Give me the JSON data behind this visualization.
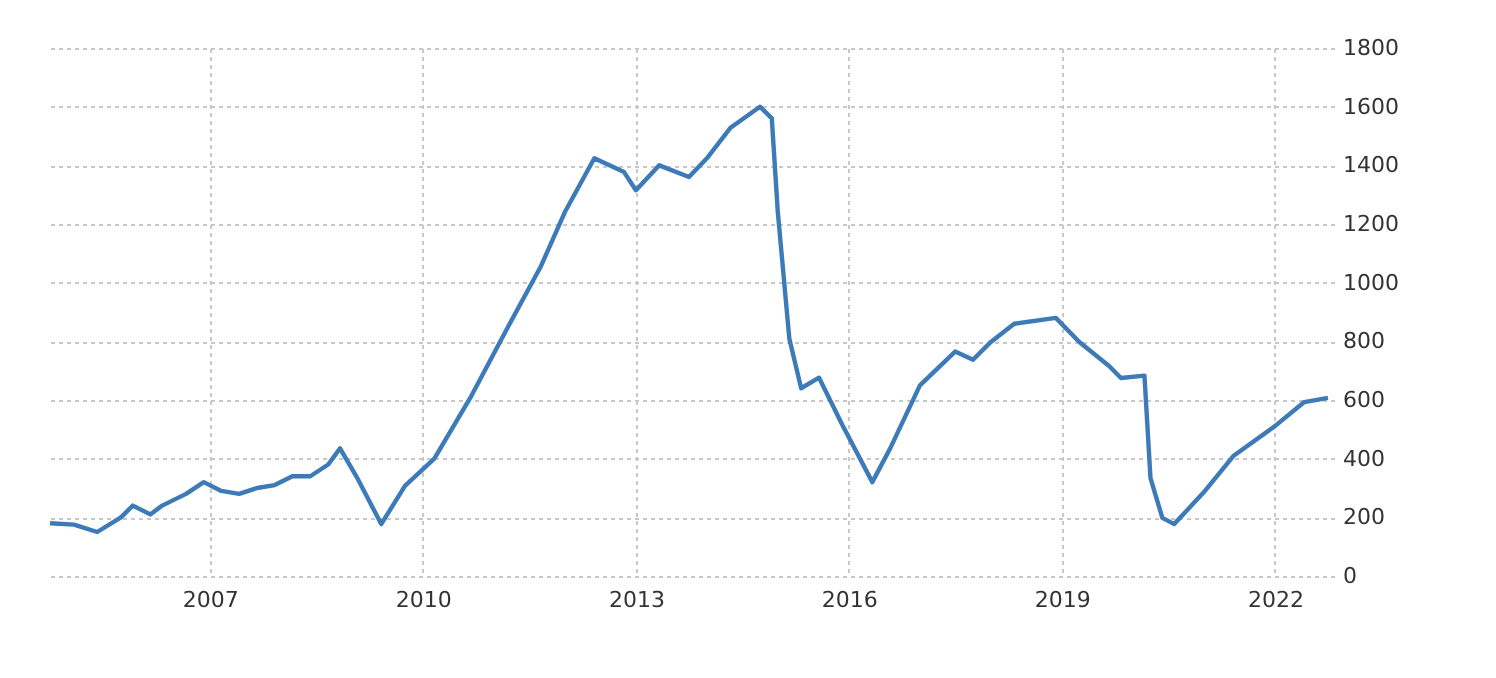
{
  "chart_data": {
    "type": "line",
    "color": "#3d7ab8",
    "x": [
      "2004-10",
      "2005-02",
      "2005-06",
      "2005-10",
      "2005-12",
      "2006-03",
      "2006-05",
      "2006-09",
      "2006-12",
      "2007-03",
      "2007-06",
      "2007-09",
      "2007-12",
      "2008-03",
      "2008-06",
      "2008-09",
      "2008-11",
      "2009-02",
      "2009-06",
      "2009-10",
      "2010-03",
      "2010-09",
      "2011-03",
      "2011-09",
      "2012-01",
      "2012-06",
      "2012-11",
      "2013-01",
      "2013-05",
      "2013-10",
      "2014-01",
      "2014-05",
      "2014-10",
      "2014-12",
      "2015-01",
      "2015-03",
      "2015-05",
      "2015-08",
      "2015-12",
      "2016-05",
      "2016-08",
      "2017-01",
      "2017-07",
      "2017-10",
      "2018-01",
      "2018-05",
      "2018-12",
      "2019-04",
      "2019-09",
      "2019-11",
      "2020-03",
      "2020-04",
      "2020-06",
      "2020-08",
      "2021-01",
      "2021-06",
      "2022-01",
      "2022-06",
      "2022-10"
    ],
    "values": [
      180,
      175,
      150,
      200,
      240,
      210,
      240,
      280,
      320,
      290,
      280,
      300,
      310,
      340,
      340,
      380,
      435,
      330,
      177,
      307,
      400,
      606,
      832,
      1057,
      1240,
      1424,
      1377,
      1315,
      1400,
      1360,
      1424,
      1527,
      1600,
      1560,
      1240,
      810,
      640,
      676,
      512,
      320,
      435,
      650,
      765,
      737,
      798,
      860,
      880,
      798,
      716,
      675,
      683,
      334,
      198,
      177,
      286,
      409,
      511,
      593,
      607
    ],
    "xlim": [
      "2004-10",
      "2022-11"
    ],
    "xticks": [
      "2007",
      "2010",
      "2013",
      "2016",
      "2019",
      "2022"
    ],
    "ylim": [
      0,
      1800
    ],
    "yticks": [
      0,
      200,
      400,
      600,
      800,
      1000,
      1200,
      1400,
      1600,
      1800
    ],
    "grid": true,
    "line_style": "solid"
  }
}
